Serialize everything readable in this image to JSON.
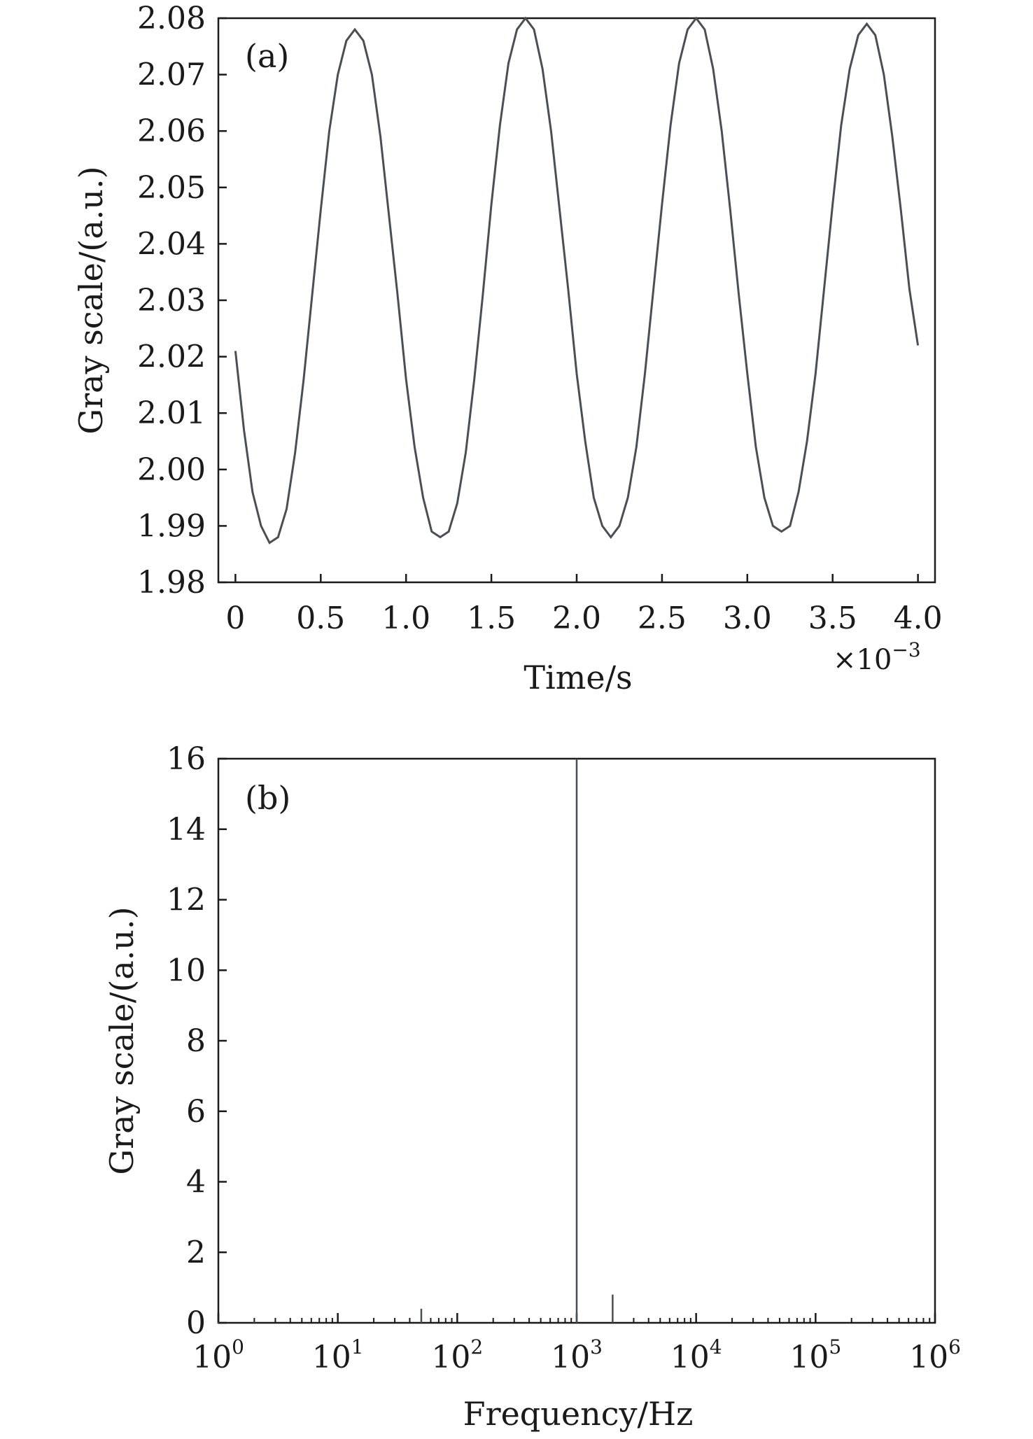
{
  "chart_data": [
    {
      "type": "line",
      "panel": "(a)",
      "xlabel": "Time/s",
      "ylabel": "Gray scale/(a.u.)",
      "x_exponent_label": "×10",
      "x_exponent_power": "−3",
      "xlim": [
        -0.1,
        4.1
      ],
      "ylim": [
        1.98,
        2.08
      ],
      "xticks": [
        0,
        0.5,
        1.0,
        1.5,
        2.0,
        2.5,
        3.0,
        3.5,
        4.0
      ],
      "xtick_labels": [
        "0",
        "0.5",
        "1.0",
        "1.5",
        "2.0",
        "2.5",
        "3.0",
        "3.5",
        "4.0"
      ],
      "yticks": [
        1.98,
        1.99,
        2.0,
        2.01,
        2.02,
        2.03,
        2.04,
        2.05,
        2.06,
        2.07,
        2.08
      ],
      "ytick_labels": [
        "1.98",
        "1.99",
        "2.00",
        "2.01",
        "2.02",
        "2.03",
        "2.04",
        "2.05",
        "2.06",
        "2.07",
        "2.08"
      ],
      "grid": false,
      "colors": {
        "line": "#4a4f55",
        "accent": "#1e8fb8"
      },
      "series": [
        {
          "x": [
            0,
            0.05,
            0.1,
            0.15,
            0.2,
            0.25,
            0.3,
            0.35,
            0.4,
            0.45,
            0.5,
            0.55,
            0.6,
            0.65,
            0.7,
            0.75,
            0.8,
            0.85,
            0.9,
            0.95,
            1.0,
            1.05,
            1.1,
            1.15,
            1.2,
            1.25,
            1.3,
            1.35,
            1.4,
            1.45,
            1.5,
            1.55,
            1.6,
            1.65,
            1.7,
            1.75,
            1.8,
            1.85,
            1.9,
            1.95,
            2.0,
            2.05,
            2.1,
            2.15,
            2.2,
            2.25,
            2.3,
            2.35,
            2.4,
            2.45,
            2.5,
            2.55,
            2.6,
            2.65,
            2.7,
            2.75,
            2.8,
            2.85,
            2.9,
            2.95,
            3.0,
            3.05,
            3.1,
            3.15,
            3.2,
            3.25,
            3.3,
            3.35,
            3.4,
            3.45,
            3.5,
            3.55,
            3.6,
            3.65,
            3.7,
            3.75,
            3.8,
            3.85,
            3.9,
            3.95,
            4.0
          ],
          "y": [
            2.021,
            2.007,
            1.996,
            1.99,
            1.987,
            1.988,
            1.993,
            2.003,
            2.016,
            2.031,
            2.046,
            2.06,
            2.07,
            2.076,
            2.078,
            2.076,
            2.07,
            2.059,
            2.045,
            2.031,
            2.016,
            2.004,
            1.995,
            1.989,
            1.988,
            1.989,
            1.994,
            2.003,
            2.016,
            2.031,
            2.047,
            2.061,
            2.072,
            2.078,
            2.08,
            2.078,
            2.071,
            2.06,
            2.046,
            2.032,
            2.017,
            2.005,
            1.995,
            1.99,
            1.988,
            1.99,
            1.995,
            2.004,
            2.017,
            2.032,
            2.047,
            2.061,
            2.072,
            2.078,
            2.08,
            2.078,
            2.071,
            2.06,
            2.046,
            2.031,
            2.017,
            2.004,
            1.995,
            1.99,
            1.989,
            1.99,
            1.996,
            2.005,
            2.017,
            2.032,
            2.047,
            2.061,
            2.071,
            2.077,
            2.079,
            2.077,
            2.07,
            2.059,
            2.046,
            2.032,
            2.022
          ]
        }
      ]
    },
    {
      "type": "bar",
      "panel": "(b)",
      "xlabel": "Frequency/Hz",
      "ylabel": "Gray scale/(a.u.)",
      "xscale": "log",
      "xlim": [
        1,
        1000000
      ],
      "ylim": [
        0,
        16
      ],
      "xticks": [
        1,
        10,
        100,
        1000,
        10000,
        100000,
        1000000
      ],
      "xtick_base": "10",
      "xtick_powers": [
        "0",
        "1",
        "2",
        "3",
        "4",
        "5",
        "6"
      ],
      "yticks": [
        0,
        2,
        4,
        6,
        8,
        10,
        12,
        14,
        16
      ],
      "ytick_labels": [
        "0",
        "2",
        "4",
        "6",
        "8",
        "10",
        "12",
        "14",
        "16"
      ],
      "grid": false,
      "colors": {
        "line": "#4a4f55"
      },
      "series": [
        {
          "x": [
            1,
            2,
            50,
            1000,
            2000
          ],
          "y": [
            0.02,
            0.04,
            0.4,
            16,
            0.8
          ]
        }
      ]
    }
  ]
}
